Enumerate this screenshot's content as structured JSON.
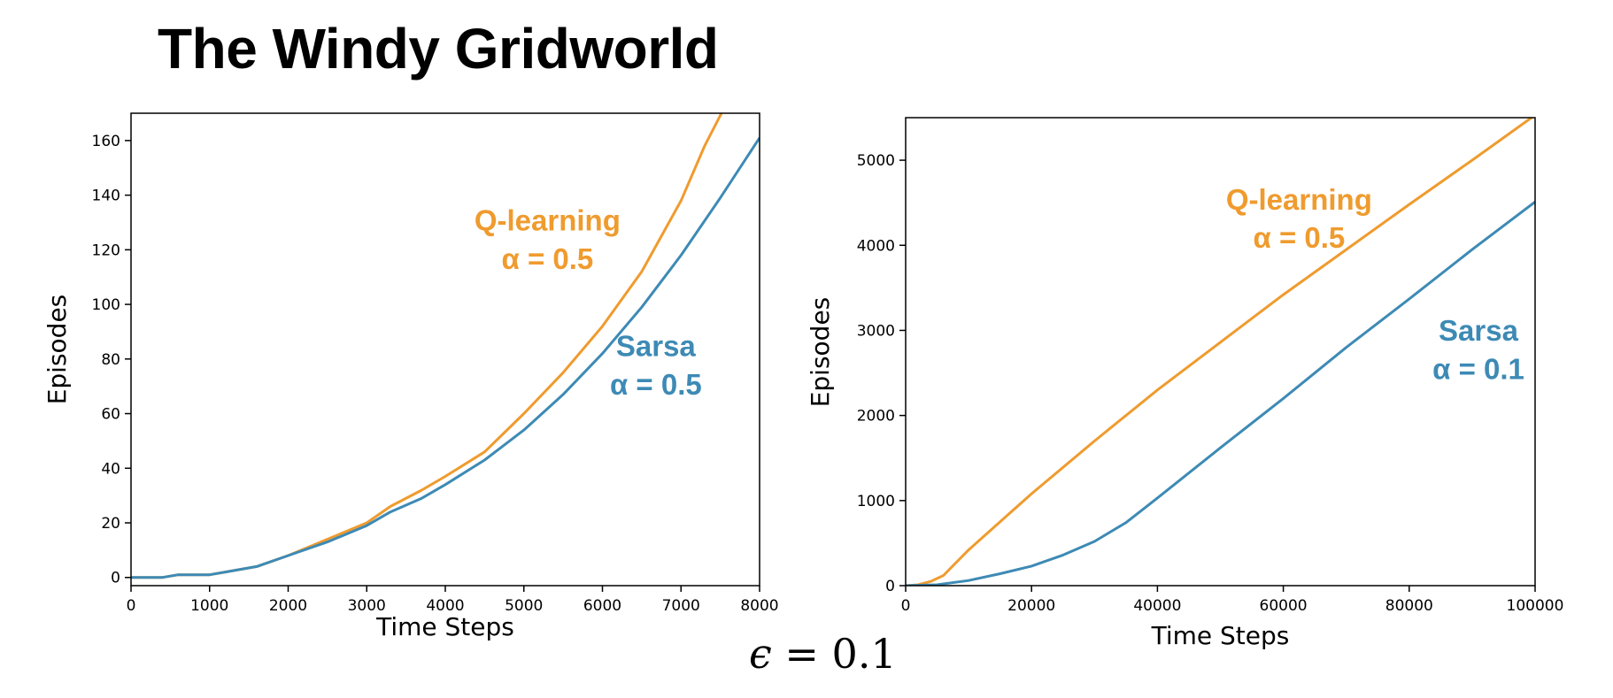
{
  "page_title": "The Windy Gridworld",
  "epsilon": {
    "symbol": "ϵ",
    "text": " = 0.1"
  },
  "colors": {
    "qlearning": "#ef9b2e",
    "sarsa": "#3d8ab5",
    "axis": "#000000"
  },
  "chart_data": [
    {
      "type": "line",
      "xlabel": "Time Steps",
      "ylabel": "Episodes",
      "xlim": [
        0,
        8000
      ],
      "ylim": [
        -3,
        170
      ],
      "xticks": [
        0,
        1000,
        2000,
        3000,
        4000,
        5000,
        6000,
        7000,
        8000
      ],
      "yticks": [
        0,
        20,
        40,
        60,
        80,
        100,
        120,
        140,
        160
      ],
      "grid": false,
      "series": [
        {
          "name": "Q-learning",
          "color": "#ef9b2e",
          "points": [
            [
              0,
              0
            ],
            [
              400,
              0
            ],
            [
              600,
              1
            ],
            [
              1000,
              1
            ],
            [
              1200,
              2
            ],
            [
              1600,
              4
            ],
            [
              2000,
              8
            ],
            [
              2500,
              14
            ],
            [
              3000,
              20
            ],
            [
              3300,
              26
            ],
            [
              3700,
              32
            ],
            [
              4000,
              37
            ],
            [
              4500,
              46
            ],
            [
              5000,
              60
            ],
            [
              5500,
              75
            ],
            [
              6000,
              92
            ],
            [
              6500,
              112
            ],
            [
              7000,
              138
            ],
            [
              7300,
              158
            ],
            [
              7550,
              172
            ]
          ]
        },
        {
          "name": "Sarsa",
          "color": "#3d8ab5",
          "points": [
            [
              0,
              0
            ],
            [
              400,
              0
            ],
            [
              600,
              1
            ],
            [
              1000,
              1
            ],
            [
              1200,
              2
            ],
            [
              1600,
              4
            ],
            [
              2000,
              8
            ],
            [
              2500,
              13
            ],
            [
              3000,
              19
            ],
            [
              3300,
              24
            ],
            [
              3700,
              29
            ],
            [
              4000,
              34
            ],
            [
              4500,
              43
            ],
            [
              5000,
              54
            ],
            [
              5500,
              67
            ],
            [
              6000,
              82
            ],
            [
              6500,
              99
            ],
            [
              7000,
              118
            ],
            [
              7500,
              139
            ],
            [
              8000,
              161
            ]
          ]
        }
      ],
      "annotations": [
        {
          "text": "Q-learning",
          "x": 5300,
          "y": 127,
          "color": "#ef9b2e"
        },
        {
          "text": "α = 0.5",
          "x": 5300,
          "y": 113,
          "color": "#ef9b2e"
        },
        {
          "text": "Sarsa",
          "x": 6680,
          "y": 81,
          "color": "#3d8ab5"
        },
        {
          "text": "α = 0.5",
          "x": 6680,
          "y": 67,
          "color": "#3d8ab5"
        }
      ]
    },
    {
      "type": "line",
      "xlabel": "Time Steps",
      "ylabel": "Episodes",
      "xlim": [
        0,
        100000
      ],
      "ylim": [
        0,
        5500
      ],
      "xticks": [
        0,
        20000,
        40000,
        60000,
        80000,
        100000
      ],
      "yticks": [
        0,
        1000,
        2000,
        3000,
        4000,
        5000
      ],
      "grid": false,
      "series": [
        {
          "name": "Q-learning",
          "color": "#ef9b2e",
          "points": [
            [
              0,
              0
            ],
            [
              2000,
              10
            ],
            [
              4000,
              50
            ],
            [
              6000,
              120
            ],
            [
              8000,
              270
            ],
            [
              10000,
              420
            ],
            [
              20000,
              1080
            ],
            [
              30000,
              1700
            ],
            [
              40000,
              2300
            ],
            [
              50000,
              2860
            ],
            [
              60000,
              3420
            ],
            [
              70000,
              3950
            ],
            [
              80000,
              4480
            ],
            [
              90000,
              5000
            ],
            [
              100000,
              5530
            ]
          ]
        },
        {
          "name": "Sarsa",
          "color": "#3d8ab5",
          "points": [
            [
              0,
              0
            ],
            [
              5000,
              10
            ],
            [
              10000,
              60
            ],
            [
              15000,
              140
            ],
            [
              20000,
              230
            ],
            [
              25000,
              360
            ],
            [
              30000,
              520
            ],
            [
              35000,
              740
            ],
            [
              40000,
              1030
            ],
            [
              50000,
              1620
            ],
            [
              60000,
              2200
            ],
            [
              70000,
              2800
            ],
            [
              80000,
              3370
            ],
            [
              90000,
              3950
            ],
            [
              100000,
              4510
            ]
          ]
        }
      ],
      "annotations": [
        {
          "text": "Q-learning",
          "x": 62500,
          "y": 4420,
          "color": "#ef9b2e"
        },
        {
          "text": "α = 0.5",
          "x": 62500,
          "y": 3970,
          "color": "#ef9b2e"
        },
        {
          "text": "Sarsa",
          "x": 91000,
          "y": 2880,
          "color": "#3d8ab5"
        },
        {
          "text": "α = 0.1",
          "x": 91000,
          "y": 2430,
          "color": "#3d8ab5"
        }
      ]
    }
  ]
}
